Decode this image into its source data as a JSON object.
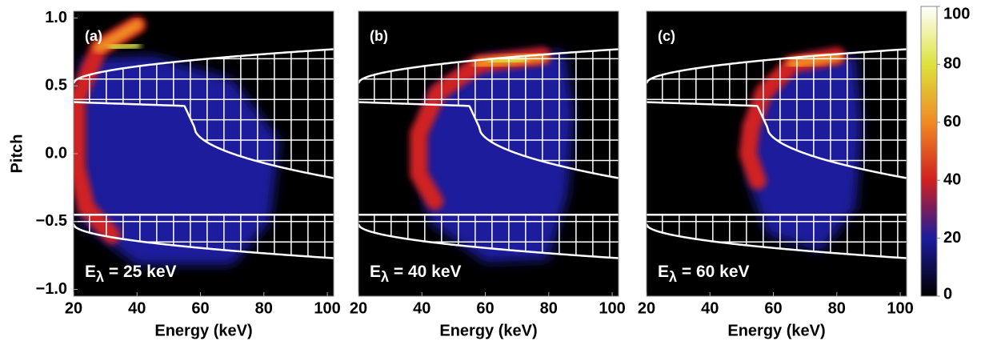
{
  "chart_data": [
    {
      "type": "heatmap",
      "label": "(a)",
      "annotation": {
        "base": "E",
        "subscript": "λ",
        "rest": " = 25 keV"
      },
      "xlabel": "Energy (keV)",
      "ylabel": "Pitch",
      "xlim": [
        20,
        102
      ],
      "xticks": [
        20,
        40,
        60,
        80,
        100
      ],
      "ylim": [
        -1.05,
        1.05
      ],
      "yticks": [
        {
          "value": 1,
          "label": "1.0"
        },
        0.5,
        {
          "value": 0,
          "label": "0.0"
        },
        {
          "value": -0.5,
          "label": "−0.5"
        },
        {
          "value": -1,
          "label": "−1.0"
        }
      ]
    },
    {
      "type": "heatmap",
      "label": "(b)",
      "annotation": {
        "base": "E",
        "subscript": "λ",
        "rest": " = 40 keV"
      },
      "xlabel": "Energy (keV)",
      "xlim": [
        20,
        102
      ],
      "xticks": [
        20,
        40,
        60,
        80,
        100
      ],
      "ylim": [
        -1.05,
        1.05
      ]
    },
    {
      "type": "heatmap",
      "label": "(c)",
      "annotation": {
        "base": "E",
        "subscript": "λ",
        "rest": " = 60 keV"
      },
      "xlabel": "Energy (keV)",
      "xlim": [
        20,
        102
      ],
      "xticks": [
        20,
        40,
        60,
        80,
        100
      ],
      "ylim": [
        -1.05,
        1.05
      ],
      "colorbar": {
        "lim": [
          0,
          100
        ],
        "ticks": [
          0,
          20,
          40,
          60,
          80,
          100
        ],
        "colormap": [
          "#000000",
          "#1c1c9c",
          "#d02020",
          "#f08a24",
          "#dce23c",
          "#ffffff"
        ]
      }
    }
  ]
}
